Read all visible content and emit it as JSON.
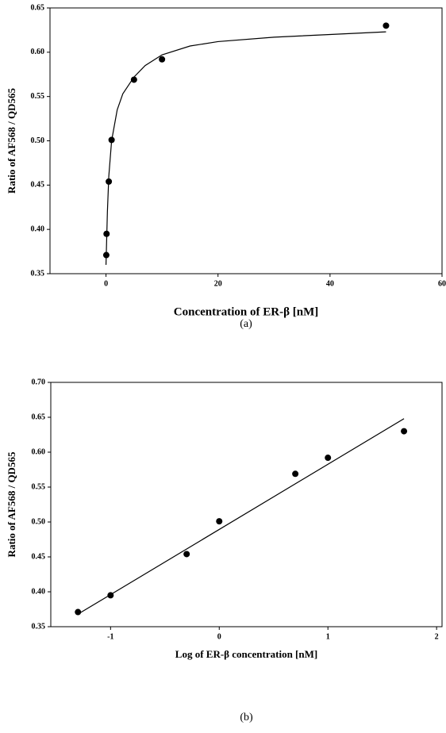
{
  "chart_data": [
    {
      "type": "scatter",
      "caption": "(a)",
      "x_label": "Concentration of ER-β [nM]",
      "y_label": "Ratio of AF568 / QD565",
      "x": [
        0.05,
        0.1,
        0.5,
        1,
        5,
        10,
        50
      ],
      "y": [
        0.371,
        0.395,
        0.454,
        0.501,
        0.569,
        0.592,
        0.63
      ],
      "fit": {
        "x": [
          0,
          0.25,
          0.5,
          1,
          2,
          3,
          5,
          7,
          10,
          15,
          20,
          30,
          40,
          50
        ],
        "y": [
          0.36,
          0.42,
          0.46,
          0.5,
          0.535,
          0.553,
          0.572,
          0.585,
          0.597,
          0.607,
          0.612,
          0.617,
          0.62,
          0.623
        ]
      },
      "color": "#000000",
      "xlim": [
        -10,
        60
      ],
      "xticks": [
        0,
        20,
        40,
        60
      ],
      "ylim": [
        0.35,
        0.65
      ],
      "yticks": [
        0.35,
        {
          "value": 0.4,
          "label": "0.40"
        },
        0.45,
        {
          "value": 0.5,
          "label": "0.50"
        },
        0.55,
        {
          "value": 0.6,
          "label": "0.60"
        },
        0.65
      ]
    },
    {
      "type": "scatter",
      "caption": "(b)",
      "x_label": "Log of ER-β concentration [nM]",
      "y_label": "Ratio of AF568 / QD565",
      "x": [
        -1.3,
        -1,
        -0.3,
        0,
        0.7,
        1,
        1.7
      ],
      "y": [
        0.371,
        0.395,
        0.454,
        0.501,
        0.569,
        0.592,
        0.63
      ],
      "fit": {
        "x": [
          -1.3,
          1.7
        ],
        "y": [
          0.368,
          0.648
        ]
      },
      "color": "#000000",
      "xlim": [
        -1.55,
        2.05
      ],
      "xticks": [
        -1,
        0,
        1,
        2
      ],
      "ylim": [
        0.35,
        0.7
      ],
      "yticks": [
        0.35,
        {
          "value": 0.4,
          "label": "0.40"
        },
        0.45,
        {
          "value": 0.5,
          "label": "0.50"
        },
        0.55,
        {
          "value": 0.6,
          "label": "0.60"
        },
        0.65,
        {
          "value": 0.7,
          "label": "0.70"
        }
      ]
    }
  ]
}
